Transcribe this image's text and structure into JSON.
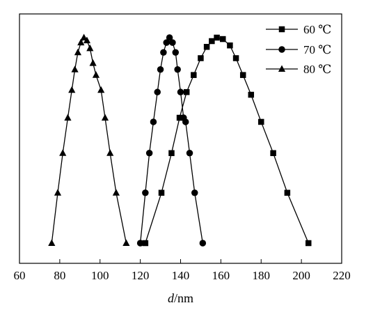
{
  "chart_data": {
    "type": "line",
    "title": "",
    "xlabel_var": "d",
    "xlabel_unit": "/nm",
    "ylabel": "",
    "xlim": [
      60,
      220
    ],
    "x_ticks": [
      "60",
      "80",
      "100",
      "120",
      "140",
      "160",
      "180",
      "200",
      "220"
    ],
    "y_ticks_shown": false,
    "grid": false,
    "legend_position": "top-right",
    "series": [
      {
        "name": "60 ℃",
        "marker": "square",
        "points": [
          [
            122.5,
            0.0
          ],
          [
            130.5,
            0.245
          ],
          [
            135.5,
            0.438
          ],
          [
            139.5,
            0.61
          ],
          [
            143.0,
            0.735
          ],
          [
            146.5,
            0.818
          ],
          [
            150.0,
            0.9
          ],
          [
            153.0,
            0.955
          ],
          [
            155.5,
            0.983
          ],
          [
            158.0,
            1.0
          ],
          [
            161.0,
            0.993
          ],
          [
            164.5,
            0.962
          ],
          [
            167.5,
            0.9
          ],
          [
            171.0,
            0.818
          ],
          [
            175.0,
            0.722
          ],
          [
            180.0,
            0.59
          ],
          [
            186.0,
            0.438
          ],
          [
            193.0,
            0.245
          ],
          [
            203.5,
            0.0
          ]
        ]
      },
      {
        "name": "70 ℃",
        "marker": "circle",
        "points": [
          [
            120.0,
            0.0
          ],
          [
            122.5,
            0.245
          ],
          [
            124.5,
            0.438
          ],
          [
            126.5,
            0.59
          ],
          [
            128.5,
            0.735
          ],
          [
            130.0,
            0.845
          ],
          [
            131.5,
            0.928
          ],
          [
            133.0,
            0.976
          ],
          [
            134.5,
            1.0
          ],
          [
            136.0,
            0.976
          ],
          [
            137.5,
            0.928
          ],
          [
            138.5,
            0.845
          ],
          [
            140.0,
            0.735
          ],
          [
            141.5,
            0.61
          ],
          [
            142.5,
            0.59
          ],
          [
            144.5,
            0.438
          ],
          [
            147.0,
            0.245
          ],
          [
            151.0,
            0.0
          ]
        ]
      },
      {
        "name": "80 ℃",
        "marker": "triangle",
        "points": [
          [
            76.0,
            0.0
          ],
          [
            79.0,
            0.245
          ],
          [
            81.5,
            0.438
          ],
          [
            84.0,
            0.61
          ],
          [
            86.0,
            0.745
          ],
          [
            87.5,
            0.845
          ],
          [
            89.0,
            0.928
          ],
          [
            90.5,
            0.976
          ],
          [
            92.0,
            1.0
          ],
          [
            93.5,
            0.986
          ],
          [
            95.0,
            0.948
          ],
          [
            96.5,
            0.876
          ],
          [
            98.0,
            0.818
          ],
          [
            100.5,
            0.745
          ],
          [
            102.5,
            0.61
          ],
          [
            105.0,
            0.438
          ],
          [
            108.0,
            0.245
          ],
          [
            113.0,
            0.0
          ]
        ]
      }
    ]
  }
}
